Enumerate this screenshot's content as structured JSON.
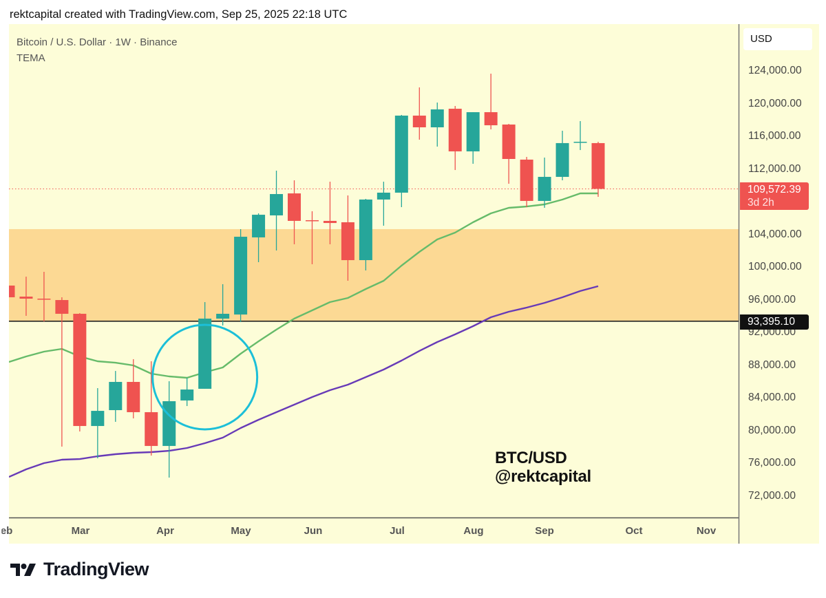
{
  "header": {
    "caption": "rektcapital created with TradingView.com, Sep 25, 2025 22:18 UTC"
  },
  "legend": {
    "symbol_line": "Bitcoin / U.S. Dollar · 1W · Binance",
    "indicator": "TEMA"
  },
  "price_axis": {
    "currency": "USD"
  },
  "watermark": {
    "line1": "BTC/USD",
    "line2": "@rektcapital"
  },
  "footer": {
    "brand": "TradingView"
  },
  "colors": {
    "up": "#26a69a",
    "down": "#ef5350",
    "fast_ma": "#66bb6a",
    "slow_ma": "#673ab7",
    "zone": "#fcd994",
    "circle": "#1cbfd8",
    "background": "#fdfdd8"
  },
  "chart_data": {
    "type": "candlestick",
    "title": "Bitcoin / U.S. Dollar · 1W · Binance",
    "ylim": [
      70000,
      128000
    ],
    "y_ticks": [
      "124,000.00",
      "120,000.00",
      "116,000.00",
      "112,000.00",
      "104,000.00",
      "100,000.00",
      "96,000.00",
      "92,000.00",
      "88,000.00",
      "84,000.00",
      "80,000.00",
      "76,000.00",
      "72,000.00"
    ],
    "y_tick_values": [
      124000,
      120000,
      116000,
      112000,
      104000,
      100000,
      96000,
      92000,
      88000,
      84000,
      80000,
      76000,
      72000
    ],
    "x_ticks": [
      "Feb",
      "Mar",
      "Apr",
      "May",
      "Jun",
      "Jul",
      "Aug",
      "Sep",
      "Oct",
      "Nov"
    ],
    "last_date": "2025-09-22",
    "candles": [
      {
        "date": "2025-02-03",
        "o": 97750,
        "h": 97750,
        "l": 96320,
        "c": 96320
      },
      {
        "date": "2025-02-10",
        "o": 96400,
        "h": 98840,
        "l": 94050,
        "c": 96150
      },
      {
        "date": "2025-02-17",
        "o": 96150,
        "h": 99430,
        "l": 93370,
        "c": 96070
      },
      {
        "date": "2025-02-24",
        "o": 95980,
        "h": 96320,
        "l": 78060,
        "c": 94300
      },
      {
        "date": "2025-03-03",
        "o": 94300,
        "h": 94380,
        "l": 79910,
        "c": 80580
      },
      {
        "date": "2025-03-10",
        "o": 80580,
        "h": 85210,
        "l": 76630,
        "c": 82430
      },
      {
        "date": "2025-03-17",
        "o": 82520,
        "h": 87310,
        "l": 81090,
        "c": 85970
      },
      {
        "date": "2025-03-24",
        "o": 85970,
        "h": 88750,
        "l": 81510,
        "c": 82270
      },
      {
        "date": "2025-03-31",
        "o": 82270,
        "h": 88490,
        "l": 76970,
        "c": 78140
      },
      {
        "date": "2025-04-07",
        "o": 78140,
        "h": 86050,
        "l": 74270,
        "c": 83610
      },
      {
        "date": "2025-04-14",
        "o": 83700,
        "h": 86470,
        "l": 83020,
        "c": 85040
      },
      {
        "date": "2025-04-21",
        "o": 85130,
        "h": 95730,
        "l": 85130,
        "c": 93710
      },
      {
        "date": "2025-04-28",
        "o": 93710,
        "h": 97920,
        "l": 92870,
        "c": 94300
      },
      {
        "date": "2025-05-05",
        "o": 94210,
        "h": 104650,
        "l": 93290,
        "c": 103720
      },
      {
        "date": "2025-05-12",
        "o": 103640,
        "h": 106580,
        "l": 100610,
        "c": 106410
      },
      {
        "date": "2025-05-19",
        "o": 106330,
        "h": 111800,
        "l": 102040,
        "c": 108940
      },
      {
        "date": "2025-05-26",
        "o": 109020,
        "h": 110620,
        "l": 102800,
        "c": 105660
      },
      {
        "date": "2025-06-02",
        "o": 105740,
        "h": 106840,
        "l": 100360,
        "c": 105660
      },
      {
        "date": "2025-06-09",
        "o": 105660,
        "h": 110450,
        "l": 102800,
        "c": 105400
      },
      {
        "date": "2025-06-16",
        "o": 105490,
        "h": 108770,
        "l": 98340,
        "c": 100860
      },
      {
        "date": "2025-06-23",
        "o": 100860,
        "h": 108350,
        "l": 99600,
        "c": 108270
      },
      {
        "date": "2025-06-30",
        "o": 108270,
        "h": 110450,
        "l": 105070,
        "c": 109110
      },
      {
        "date": "2025-07-07",
        "o": 109110,
        "h": 118610,
        "l": 107340,
        "c": 118530
      },
      {
        "date": "2025-07-14",
        "o": 118530,
        "h": 121980,
        "l": 115590,
        "c": 117100
      },
      {
        "date": "2025-07-21",
        "o": 117100,
        "h": 120130,
        "l": 114740,
        "c": 119290
      },
      {
        "date": "2025-07-28",
        "o": 119370,
        "h": 119710,
        "l": 111880,
        "c": 114160
      },
      {
        "date": "2025-08-04",
        "o": 114160,
        "h": 118950,
        "l": 112640,
        "c": 118950
      },
      {
        "date": "2025-08-11",
        "o": 118950,
        "h": 123660,
        "l": 116850,
        "c": 117350
      },
      {
        "date": "2025-08-18",
        "o": 117440,
        "h": 117520,
        "l": 110200,
        "c": 113230
      },
      {
        "date": "2025-08-25",
        "o": 113150,
        "h": 113480,
        "l": 107340,
        "c": 108100
      },
      {
        "date": "2025-09-01",
        "o": 108100,
        "h": 113400,
        "l": 107260,
        "c": 111040
      },
      {
        "date": "2025-09-08",
        "o": 111040,
        "h": 116680,
        "l": 110620,
        "c": 115170
      },
      {
        "date": "2025-09-15",
        "o": 115250,
        "h": 117860,
        "l": 114320,
        "c": 115330
      },
      {
        "date": "2025-09-22",
        "o": 115170,
        "h": 115330,
        "l": 108600,
        "c": 109572.39
      }
    ],
    "series": [
      {
        "name": "TEMA fast",
        "color": "#66bb6a",
        "values": [
          88410,
          89080,
          89670,
          90010,
          89080,
          88490,
          88320,
          87990,
          86980,
          86640,
          86470,
          87150,
          87740,
          89420,
          90930,
          92360,
          93710,
          94720,
          95730,
          96230,
          97330,
          98340,
          100190,
          101870,
          103390,
          104230,
          105490,
          106580,
          107260,
          107420,
          107680,
          108270,
          109020,
          109020
        ]
      },
      {
        "name": "TEMA slow",
        "color": "#673ab7",
        "values": [
          74360,
          75280,
          76040,
          76460,
          76540,
          76880,
          77130,
          77300,
          77390,
          77550,
          77890,
          78480,
          79150,
          80330,
          81340,
          82270,
          83190,
          84120,
          84960,
          85630,
          86560,
          87480,
          88580,
          89760,
          90850,
          91780,
          92780,
          93880,
          94550,
          95060,
          95640,
          96320,
          97080,
          97670
        ]
      }
    ],
    "zone": {
      "from": 93395.1,
      "to": 104650
    },
    "level": {
      "value": 93395.1,
      "label": "93,395.10"
    },
    "last_price": {
      "value": 109572.39,
      "label": "109,572.39",
      "countdown": "3d 2h"
    },
    "annotation": {
      "type": "circle",
      "around_date": "2025-04-21"
    }
  }
}
